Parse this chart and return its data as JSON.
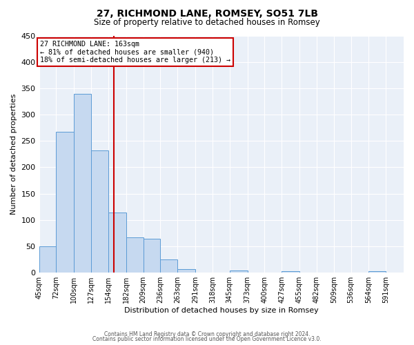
{
  "title": "27, RICHMOND LANE, ROMSEY, SO51 7LB",
  "subtitle": "Size of property relative to detached houses in Romsey",
  "xlabel": "Distribution of detached houses by size in Romsey",
  "ylabel": "Number of detached properties",
  "bar_color": "#c6d9f0",
  "bar_edge_color": "#5b9bd5",
  "bg_color": "#eaf0f8",
  "grid_color": "#ffffff",
  "vline_value": 163,
  "vline_color": "#cc0000",
  "annotation_line1": "27 RICHMOND LANE: 163sqm",
  "annotation_line2": "← 81% of detached houses are smaller (940)",
  "annotation_line3": "18% of semi-detached houses are larger (213) →",
  "annotation_box_color": "#cc0000",
  "footer_line1": "Contains HM Land Registry data © Crown copyright and database right 2024.",
  "footer_line2": "Contains public sector information licensed under the Open Government Licence v3.0.",
  "bin_edges": [
    45,
    72,
    100,
    127,
    154,
    182,
    209,
    236,
    263,
    291,
    318,
    345,
    373,
    400,
    427,
    455,
    482,
    509,
    536,
    564,
    591,
    619
  ],
  "bin_labels": [
    "45sqm",
    "72sqm",
    "100sqm",
    "127sqm",
    "154sqm",
    "182sqm",
    "209sqm",
    "236sqm",
    "263sqm",
    "291sqm",
    "318sqm",
    "345sqm",
    "373sqm",
    "400sqm",
    "427sqm",
    "455sqm",
    "482sqm",
    "509sqm",
    "536sqm",
    "564sqm",
    "591sqm"
  ],
  "bar_heights": [
    50,
    267,
    340,
    232,
    114,
    67,
    65,
    25,
    7,
    0,
    0,
    4,
    0,
    0,
    3,
    0,
    0,
    0,
    0,
    3,
    0
  ],
  "ylim": [
    0,
    450
  ],
  "yticks": [
    0,
    50,
    100,
    150,
    200,
    250,
    300,
    350,
    400,
    450
  ]
}
